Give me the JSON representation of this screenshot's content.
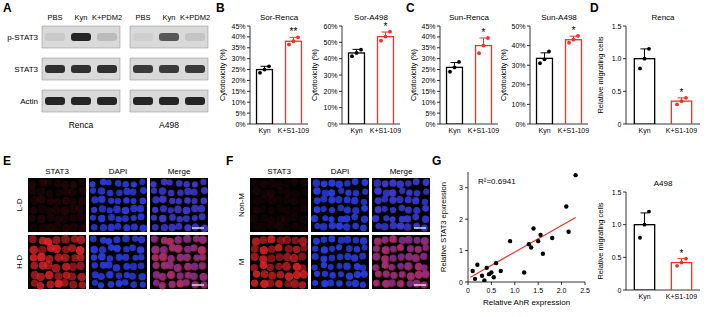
{
  "panel_labels": [
    "A",
    "B",
    "C",
    "D",
    "E",
    "F",
    "G"
  ],
  "blots": {
    "rows": [
      "p-STAT3",
      "STAT3",
      "Actin"
    ],
    "lanes": [
      "PBS",
      "Kyn",
      "K+PDM2"
    ],
    "panels": [
      {
        "label": "Renca",
        "intensity": [
          [
            0.08,
            0.9,
            0.15
          ],
          [
            0.85,
            0.85,
            0.85
          ],
          [
            0.9,
            0.9,
            0.9
          ]
        ]
      },
      {
        "label": "A498",
        "intensity": [
          [
            0.05,
            0.65,
            0.1
          ],
          [
            0.8,
            0.8,
            0.8
          ],
          [
            0.9,
            0.9,
            0.9
          ]
        ]
      }
    ]
  },
  "images": [
    {
      "columns": [
        "STAT3",
        "DAPI",
        "Merge"
      ],
      "rows": [
        {
          "label": "L-D",
          "stat3": 0.15
        },
        {
          "label": "H-D",
          "stat3": 0.9
        }
      ]
    },
    {
      "columns": [
        "STAT3",
        "DAPI",
        "Merge"
      ],
      "rows": [
        {
          "label": "Non-M",
          "stat3": 0.1
        },
        {
          "label": "M",
          "stat3": 0.85
        }
      ]
    }
  ],
  "chart_data": [
    {
      "type": "bar",
      "title": "Sor-Renca",
      "y_label": "Cytotoxicity (%)",
      "categories": [
        "Kyn",
        "K+S1-109"
      ],
      "values": [
        25,
        38
      ],
      "errors": [
        1.5,
        1.8
      ],
      "points": [
        [
          23.5,
          25,
          26.5
        ],
        [
          36.5,
          38,
          39.8
        ]
      ],
      "colors": [
        "#000000",
        "#e8352b"
      ],
      "annotation": "**",
      "ylim": [
        0,
        45
      ],
      "yticks": [
        {
          "value": 0,
          "label": "0%"
        },
        {
          "value": 5,
          "label": "5%"
        },
        {
          "value": 10,
          "label": "10%"
        },
        {
          "value": 15,
          "label": "15%"
        },
        {
          "value": 20,
          "label": "20%"
        },
        {
          "value": 25,
          "label": "25%"
        },
        {
          "value": 30,
          "label": "30%"
        },
        {
          "value": 35,
          "label": "35%"
        },
        {
          "value": 40,
          "label": "40%"
        },
        {
          "value": 45,
          "label": "45%"
        }
      ]
    },
    {
      "type": "bar",
      "title": "Sor-A498",
      "y_label": "Cytotoxicity (%)",
      "categories": [
        "Kyn",
        "K+S1-109"
      ],
      "values": [
        43.5,
        53.5
      ],
      "errors": [
        2.2,
        2.8
      ],
      "points": [
        [
          41.5,
          43.5,
          45.5
        ],
        [
          51,
          53.5,
          56.5
        ]
      ],
      "colors": [
        "#000000",
        "#e8352b"
      ],
      "annotation": "*",
      "ylim": [
        0,
        60
      ],
      "yticks": [
        {
          "value": 0,
          "label": "0%"
        },
        {
          "value": 10,
          "label": "10%"
        },
        {
          "value": 20,
          "label": "20%"
        },
        {
          "value": 30,
          "label": "30%"
        },
        {
          "value": 40,
          "label": "40%"
        },
        {
          "value": 50,
          "label": "50%"
        },
        {
          "value": 60,
          "label": "60%"
        }
      ]
    },
    {
      "type": "bar",
      "title": "Sun-Renca",
      "y_label": "Cytotoxicity (%)",
      "categories": [
        "Kyn",
        "K+S1-109"
      ],
      "values": [
        26,
        36
      ],
      "errors": [
        2.2,
        3.5
      ],
      "points": [
        [
          24,
          26,
          28.5
        ],
        [
          32.5,
          36,
          39.5
        ]
      ],
      "colors": [
        "#000000",
        "#e8352b"
      ],
      "annotation": "*",
      "ylim": [
        0,
        45
      ],
      "yticks": [
        {
          "value": 0,
          "label": "0%"
        },
        {
          "value": 5,
          "label": "5%"
        },
        {
          "value": 10,
          "label": "10%"
        },
        {
          "value": 15,
          "label": "15%"
        },
        {
          "value": 20,
          "label": "20%"
        },
        {
          "value": 25,
          "label": "25%"
        },
        {
          "value": 30,
          "label": "30%"
        },
        {
          "value": 35,
          "label": "35%"
        },
        {
          "value": 40,
          "label": "40%"
        },
        {
          "value": 45,
          "label": "45%"
        }
      ]
    },
    {
      "type": "bar",
      "title": "Sun-A498",
      "y_label": "Cytotoxicity (%)",
      "categories": [
        "Kyn",
        "K+S1-109"
      ],
      "values": [
        33.5,
        43
      ],
      "errors": [
        2.8,
        1.8
      ],
      "points": [
        [
          31,
          33,
          37
        ],
        [
          41.5,
          43,
          45
        ]
      ],
      "colors": [
        "#000000",
        "#e8352b"
      ],
      "annotation": "*",
      "ylim": [
        0,
        50
      ],
      "yticks": [
        {
          "value": 0,
          "label": "0%"
        },
        {
          "value": 10,
          "label": "10%"
        },
        {
          "value": 20,
          "label": "20%"
        },
        {
          "value": 30,
          "label": "30%"
        },
        {
          "value": 40,
          "label": "40%"
        },
        {
          "value": 50,
          "label": "50%"
        }
      ]
    },
    {
      "type": "bar",
      "title": "Renca",
      "y_label": "Relative migrating cells",
      "categories": [
        "Kyn",
        "K+S1-109"
      ],
      "values": [
        1.0,
        0.35
      ],
      "errors": [
        0.15,
        0.05
      ],
      "points": [
        [
          0.85,
          1.0,
          1.15
        ],
        [
          0.3,
          0.35,
          0.4
        ]
      ],
      "colors": [
        "#000000",
        "#e8352b"
      ],
      "annotation": "*",
      "ylim": [
        0,
        1.5
      ],
      "yticks": [
        0,
        0.5,
        {
          "value": 1,
          "label": "1.0"
        },
        1.5
      ]
    },
    {
      "type": "bar",
      "title": "A498",
      "y_label": "Relative migrating cells",
      "categories": [
        "Kyn",
        "K+S1-109"
      ],
      "values": [
        1.0,
        0.42
      ],
      "errors": [
        0.18,
        0.06
      ],
      "points": [
        [
          0.8,
          1.0,
          1.2
        ],
        [
          0.37,
          0.42,
          0.48
        ]
      ],
      "colors": [
        "#000000",
        "#e8352b"
      ],
      "annotation": "*",
      "ylim": [
        0,
        1.5
      ],
      "yticks": [
        0,
        0.5,
        {
          "value": 1,
          "label": "1.0"
        },
        1.5
      ]
    },
    {
      "type": "scatter",
      "x_label": "Relative AhR expression",
      "y_label": "Relative STAT3 epxression",
      "x": [
        0.1,
        0.15,
        0.2,
        0.3,
        0.35,
        0.4,
        0.45,
        0.5,
        0.55,
        0.6,
        0.7,
        0.9,
        1.2,
        1.3,
        1.35,
        1.4,
        1.5,
        1.55,
        1.6,
        1.8,
        2.1,
        2.15,
        2.3
      ],
      "y": [
        0.35,
        0.1,
        0.55,
        0.2,
        0.05,
        0.45,
        0.25,
        0.3,
        0.15,
        0.6,
        0.35,
        1.3,
        0.3,
        1.2,
        1.1,
        1.7,
        1.3,
        1.5,
        0.9,
        1.4,
        2.4,
        1.6,
        3.4
      ],
      "color": "#000000",
      "fit": {
        "x": [
          0.05,
          2.3
        ],
        "y": [
          0.15,
          2.05
        ],
        "color": "#e8352b"
      },
      "annotation": "R²=0.6941",
      "xlim": [
        0,
        2.5
      ],
      "ylim": [
        0,
        3.5
      ],
      "xticks": [
        0,
        0.5,
        {
          "value": 1,
          "label": "1.0"
        },
        1.5,
        {
          "value": 2,
          "label": "2.0"
        },
        2.5
      ],
      "yticks": [
        0,
        1,
        2,
        3
      ]
    }
  ]
}
